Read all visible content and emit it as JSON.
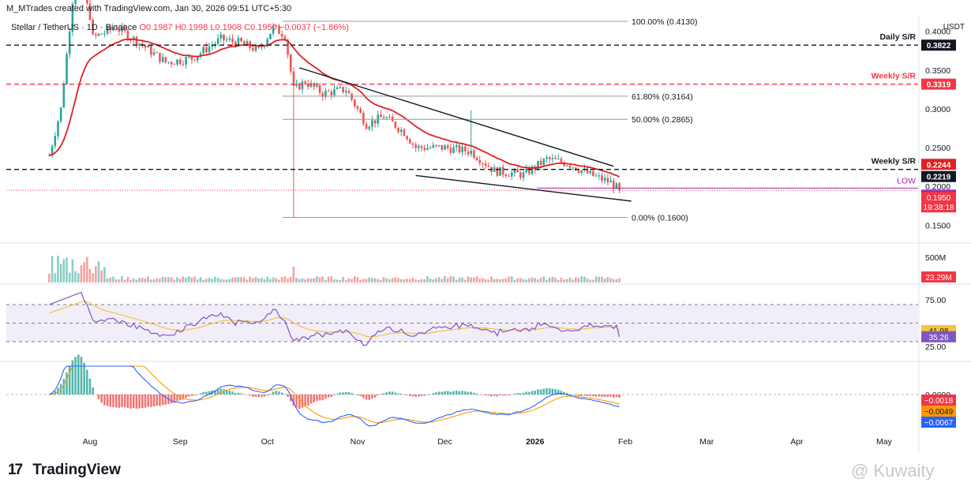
{
  "header": {
    "creator_line": "M_MTrades created with TradingView.com, Jan 30, 2026 09:51 UTC+5:30",
    "symbol": "Stellar / TetherUS · 1D · Binance",
    "ohlc": "O0.1987 H0.1998 L0.1908 C0.1950 −0.0037 (−1.86%)"
  },
  "axis_currency": "USDT",
  "brand": {
    "name": "TradingView",
    "logo_glyph": "17"
  },
  "watermark": "@ Kuwaity",
  "colors": {
    "up": "#26a69a",
    "down": "#ef5350",
    "ma": "#e02020",
    "rsi": "#7e57c2",
    "rsi_ma": "#f5c242",
    "macd": "#2962ff",
    "signal": "#ff9800",
    "bg": "#ffffff"
  },
  "chart_data": [
    {
      "type": "candlestick",
      "title": "Stellar / TetherUS · 1D · Binance",
      "x_ticks": [
        "Aug",
        "Sep",
        "Oct",
        "Nov",
        "Dec",
        "2026",
        "Feb",
        "Mar",
        "Apr",
        "May"
      ],
      "y_ticks": [
        "0.4000",
        "0.3500",
        "0.3000",
        "0.2500",
        "0.2000",
        "0.1500"
      ],
      "ylim": [
        0.13,
        0.415
      ],
      "close_path_anchors": [
        {
          "t": "Jul 10",
          "v": 0.24
        },
        {
          "t": "Jul 14",
          "v": 0.3
        },
        {
          "t": "Jul 18",
          "v": 0.44
        },
        {
          "t": "Jul 20",
          "v": 0.47
        },
        {
          "t": "Jul 24",
          "v": 0.42
        },
        {
          "t": "Aug 1",
          "v": 0.39
        },
        {
          "t": "Aug 10",
          "v": 0.405
        },
        {
          "t": "Aug 18",
          "v": 0.385
        },
        {
          "t": "Aug 27",
          "v": 0.36
        },
        {
          "t": "Sep 5",
          "v": 0.365
        },
        {
          "t": "Sep 15",
          "v": 0.39
        },
        {
          "t": "Sep 22",
          "v": 0.385
        },
        {
          "t": "Sep 28",
          "v": 0.375
        },
        {
          "t": "Oct 3",
          "v": 0.405
        },
        {
          "t": "Oct 7",
          "v": 0.395
        },
        {
          "t": "Oct 10",
          "v": 0.325
        },
        {
          "t": "Oct 14",
          "v": 0.335
        },
        {
          "t": "Oct 20",
          "v": 0.32
        },
        {
          "t": "Oct 28",
          "v": 0.325
        },
        {
          "t": "Nov 4",
          "v": 0.28
        },
        {
          "t": "Nov 10",
          "v": 0.29
        },
        {
          "t": "Nov 17",
          "v": 0.27
        },
        {
          "t": "Nov 21",
          "v": 0.25
        },
        {
          "t": "Dec 1",
          "v": 0.25
        },
        {
          "t": "Dec 10",
          "v": 0.245
        },
        {
          "t": "Dec 18",
          "v": 0.22
        },
        {
          "t": "Dec 28",
          "v": 0.215
        },
        {
          "t": "Jan 5",
          "v": 0.235
        },
        {
          "t": "Jan 12",
          "v": 0.23
        },
        {
          "t": "Jan 20",
          "v": 0.215
        },
        {
          "t": "Jan 27",
          "v": 0.205
        },
        {
          "t": "Jan 30",
          "v": 0.195
        }
      ],
      "fibonacci": [
        {
          "label": "100.00% (0.4130)",
          "value": 0.413
        },
        {
          "label": "61.80% (0.3164)",
          "value": 0.3164
        },
        {
          "label": "50.00% (0.2865)",
          "value": 0.2865
        },
        {
          "label": "0.00% (0.1600)",
          "value": 0.16
        }
      ],
      "sr_lines": [
        {
          "label": "Daily S/R",
          "value": 0.3822,
          "tag": "0.3822",
          "color": "#131722"
        },
        {
          "label": "Weekly S/R",
          "value": 0.3319,
          "tag": "0.3319",
          "color": "#f23645"
        },
        {
          "label": "Weekly S/R",
          "value": 0.2219,
          "tag": "0.2219",
          "color": "#131722"
        }
      ],
      "low_line": {
        "label": "LOW",
        "value": 0.1978,
        "tag": "0.1978"
      },
      "price_tags": [
        {
          "text": "0.2244",
          "value": 0.2244,
          "color": "#e02020"
        },
        {
          "text": "0.1950",
          "value": 0.195,
          "color": "#f23645",
          "countdown": "19:38:18"
        }
      ],
      "wedge": {
        "upper": [
          {
            "t": "Oct 12",
            "v": 0.353
          },
          {
            "t": "Jan 28",
            "v": 0.226
          }
        ],
        "lower": [
          {
            "t": "Nov 21",
            "v": 0.214
          },
          {
            "t": "Jan 30",
            "v": 0.18
          }
        ]
      }
    },
    {
      "type": "bar",
      "title": "Volume",
      "y_ticks": [
        "500M"
      ],
      "last_value": "23.29M"
    },
    {
      "type": "line",
      "title": "RSI",
      "y_ticks": [
        "75.00",
        "25.00"
      ],
      "series": [
        {
          "value": "41.98",
          "color": "#f5c242"
        },
        {
          "value": "35.26",
          "color": "#7e57c2"
        }
      ],
      "band": [
        30,
        70
      ]
    },
    {
      "type": "bar",
      "title": "MACD",
      "series": [
        {
          "value": "−0.0018",
          "color": "#ef5350"
        },
        {
          "value": "−0.0049",
          "color": "#ff9800"
        },
        {
          "value": "−0.0067",
          "color": "#2962ff"
        }
      ],
      "zero_label": "0.0000"
    }
  ]
}
